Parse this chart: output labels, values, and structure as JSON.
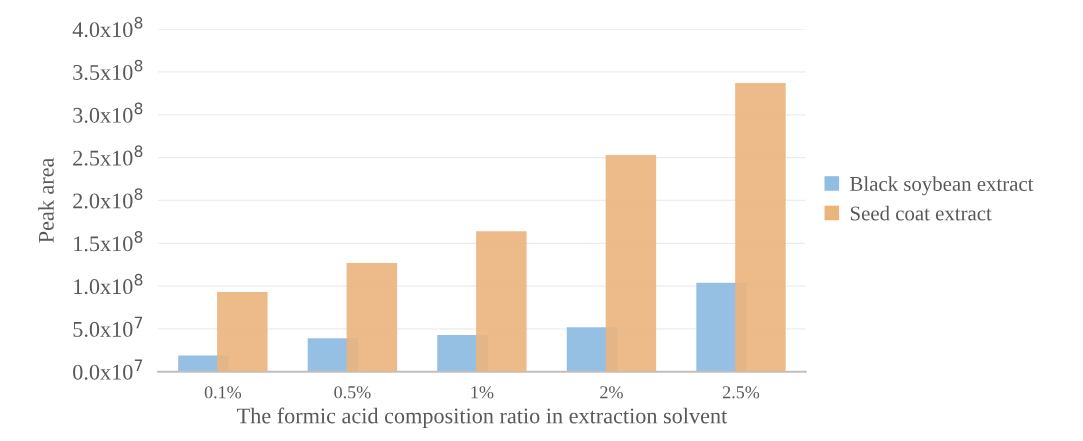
{
  "chart_data": {
    "type": "bar",
    "xlabel": "The formic acid composition ratio in extraction solvent",
    "ylabel": "Peak area",
    "categories": [
      "0.1%",
      "0.5%",
      "1%",
      "2%",
      "2.5%"
    ],
    "series": [
      {
        "name": "Black soybean extract",
        "color": "#8fbde3",
        "values": [
          19000000,
          39000000,
          43000000,
          52000000,
          104000000
        ]
      },
      {
        "name": "Seed coat extract",
        "color": "#ebb47c",
        "values": [
          93000000,
          127000000,
          164000000,
          253000000,
          337000000
        ]
      }
    ],
    "ylim": [
      0,
      400000000
    ],
    "yticks": [
      {
        "value": 0,
        "label": "0.0x10$^{7}$"
      },
      {
        "value": 50000000,
        "label": "5.0x10$^{7}$"
      },
      {
        "value": 100000000,
        "label": "1.0x10$^{8}$"
      },
      {
        "value": 150000000,
        "label": "1.5x10$^{8}$"
      },
      {
        "value": 200000000,
        "label": "2.0x10$^{8}$"
      },
      {
        "value": 250000000,
        "label": "2.5x10$^{8}$"
      },
      {
        "value": 300000000,
        "label": "3.0x10$^{8}$"
      },
      {
        "value": 350000000,
        "label": "3.5x10$^{8}$"
      },
      {
        "value": 400000000,
        "label": "4.0x10$^{8}$"
      }
    ],
    "grid": "y",
    "legend": "right"
  }
}
